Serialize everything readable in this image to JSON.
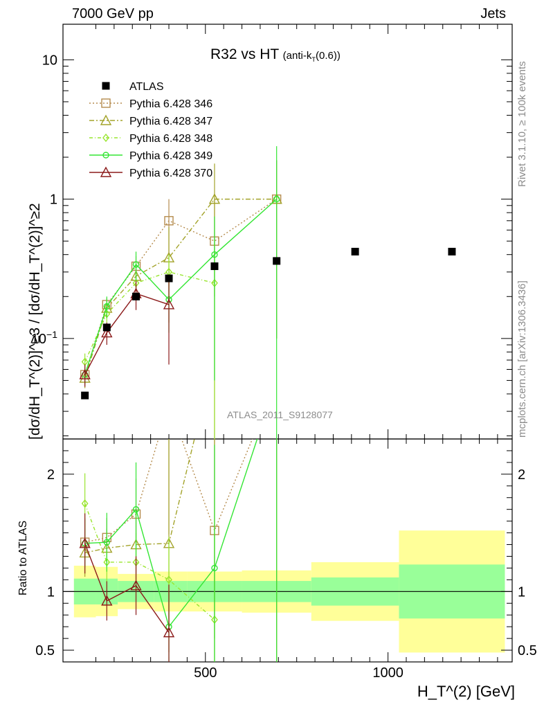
{
  "header": {
    "left": "7000 GeV pp",
    "right": "Jets"
  },
  "plot": {
    "title_main": "R32 vs HT",
    "title_sub": "(anti-k",
    "title_sub_index": "T",
    "title_sub_tail": "(0.6))",
    "ylabel_main": "[dσ/dH_T^(2)]^≥3 / [dσ/dH_T^(2)]^≥2",
    "ylabel_ratio": "Ratio to ATLAS",
    "xlabel": "H_T^(2) [GeV]",
    "side_text_1": "Rivet 3.1.10, ≥ 100k events",
    "side_text_2": "mcplots.cern.ch [arXiv:1306.3436]",
    "watermark": "ATLAS_2011_S9128077"
  },
  "colors": {
    "ATLAS": "#000000",
    "p346": "#b58c4e",
    "p347": "#a3a32a",
    "p348": "#99e52e",
    "p349": "#33e633",
    "p370": "#8b1a1a",
    "band_inner": "#99ff99",
    "band_outer": "#ffff99"
  },
  "chart_data": {
    "type": "scatter",
    "x_scale": "linear",
    "y_scale": "log",
    "xlim": [
      110,
      1340
    ],
    "ylim": [
      0.019,
      18
    ],
    "ratio_ylim": [
      0.4,
      2.3
    ],
    "x_ticks": [
      {
        "value": 500,
        "label": "500"
      },
      {
        "value": 1000,
        "label": "1000"
      }
    ],
    "y_ticks": [
      {
        "value": 0.1,
        "label": "10^-1"
      },
      {
        "value": 1,
        "label": "1"
      },
      {
        "value": 10,
        "label": "10"
      }
    ],
    "ratio_ticks": [
      {
        "value": 0.5,
        "label": "0.5"
      },
      {
        "value": 1,
        "label": "1"
      },
      {
        "value": 2,
        "label": "2"
      }
    ],
    "legend": {
      "placement": "top-left",
      "entries": [
        {
          "key": "ATLAS",
          "label": "ATLAS"
        },
        {
          "key": "p346",
          "label": "Pythia 6.428 346"
        },
        {
          "key": "p347",
          "label": "Pythia 6.428 347"
        },
        {
          "key": "p348",
          "label": "Pythia 6.428 348"
        },
        {
          "key": "p349",
          "label": "Pythia 6.428 349"
        },
        {
          "key": "p370",
          "label": "Pythia 6.428 370"
        }
      ]
    },
    "data_bins": [
      {
        "lo": 140,
        "hi": 200,
        "x": 170,
        "y": 0.039,
        "stat": 0.11,
        "tot": 0.22
      },
      {
        "lo": 200,
        "hi": 260,
        "x": 230,
        "y": 0.12,
        "stat": 0.11,
        "tot": 0.21
      },
      {
        "lo": 260,
        "hi": 360,
        "x": 310,
        "y": 0.2,
        "stat": 0.09,
        "tot": 0.15
      },
      {
        "lo": 360,
        "hi": 450,
        "x": 400,
        "y": 0.27,
        "stat": 0.09,
        "tot": 0.17
      },
      {
        "lo": 450,
        "hi": 600,
        "x": 525,
        "y": 0.33,
        "stat": 0.09,
        "tot": 0.17
      },
      {
        "lo": 600,
        "hi": 790,
        "x": 695,
        "y": 0.36,
        "stat": 0.09,
        "tot": 0.18
      },
      {
        "lo": 790,
        "hi": 1030,
        "x": 910,
        "y": 0.42,
        "stat": 0.12,
        "tot": 0.25
      },
      {
        "lo": 1030,
        "hi": 1320,
        "x": 1175,
        "y": 0.42,
        "stat": 0.23,
        "tot": 0.52
      }
    ],
    "series": [
      {
        "key": "p346",
        "marker": "square",
        "dash": "2,3",
        "x": [
          170,
          230,
          310,
          400,
          525,
          695
        ],
        "y": [
          0.055,
          0.175,
          0.33,
          0.7,
          0.5,
          1.0
        ],
        "err": [
          0.008,
          0.02,
          0.06,
          0.3,
          0.5,
          0.9
        ],
        "ratio": [
          1.42,
          1.46,
          1.66,
          2.6,
          1.52,
          2.8
        ]
      },
      {
        "key": "p347",
        "marker": "triangle",
        "dash": "7,3,2,3",
        "x": [
          170,
          230,
          310,
          400,
          525,
          695
        ],
        "y": [
          0.052,
          0.165,
          0.28,
          0.38,
          1.0,
          1.0
        ],
        "err": [
          0.008,
          0.02,
          0.06,
          0.25,
          0.8,
          0.9
        ],
        "ratio": [
          1.33,
          1.37,
          1.4,
          1.41,
          3.0,
          2.8
        ]
      },
      {
        "key": "p348",
        "marker": "diamond",
        "dash": "5,3,1,3",
        "x": [
          170,
          230,
          310,
          400,
          525
        ],
        "y": [
          0.068,
          0.15,
          0.25,
          0.3,
          0.25
        ],
        "err": [
          0.01,
          0.02,
          0.05,
          0.1,
          0.24
        ],
        "ratio": [
          1.75,
          1.25,
          1.25,
          1.1,
          0.76
        ]
      },
      {
        "key": "p349",
        "marker": "circle",
        "dash": "",
        "x": [
          170,
          230,
          310,
          400,
          525,
          695
        ],
        "y": [
          0.055,
          0.17,
          0.34,
          0.19,
          0.4,
          1.0
        ],
        "err": [
          0.008,
          0.03,
          0.08,
          0.08,
          0.35,
          1.4
        ],
        "ratio": [
          1.41,
          1.42,
          1.7,
          0.7,
          1.2,
          2.8
        ]
      },
      {
        "key": "p370",
        "marker": "triangle",
        "dash": "",
        "x": [
          170,
          230,
          310,
          400
        ],
        "y": [
          0.055,
          0.11,
          0.21,
          0.175
        ],
        "err": [
          0.01,
          0.02,
          0.05,
          0.11
        ],
        "ratio": [
          1.41,
          0.92,
          1.05,
          0.65
        ]
      }
    ],
    "atlas_points": [
      {
        "x": 170,
        "y": 0.039
      },
      {
        "x": 230,
        "y": 0.12
      },
      {
        "x": 310,
        "y": 0.2
      },
      {
        "x": 400,
        "y": 0.27
      },
      {
        "x": 525,
        "y": 0.33
      },
      {
        "x": 695,
        "y": 0.36
      },
      {
        "x": 910,
        "y": 0.42
      },
      {
        "x": 1175,
        "y": 0.42
      }
    ]
  }
}
